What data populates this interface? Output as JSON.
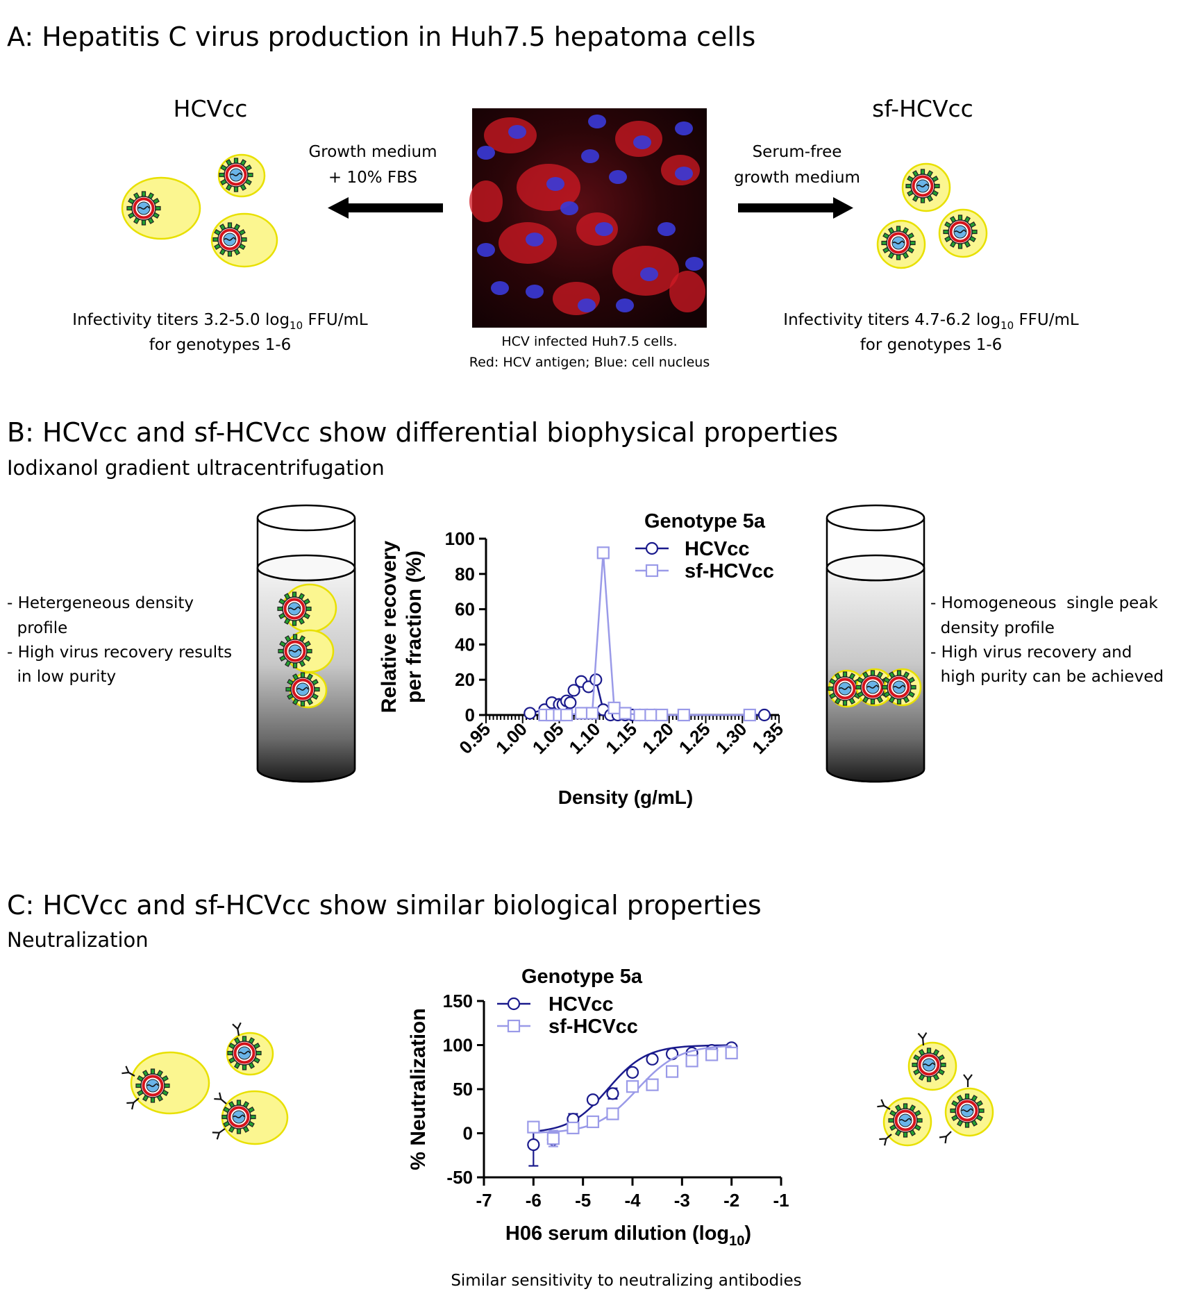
{
  "panel_a": {
    "heading": "A: Hepatitis C virus production in Huh7.5 hepatoma cells",
    "left_label": "HCVcc",
    "right_label": "sf-HCVcc",
    "left_medium_line1": "Growth medium",
    "left_medium_line2": "+ 10% FBS",
    "right_medium_line1": "Serum-free",
    "right_medium_line2": "growth medium",
    "left_titer_prefix": "Infectivity titers 3.2-5.0 log",
    "left_titer_sub": "10",
    "left_titer_suffix": " FFU/mL",
    "left_titer_line2": "for genotypes 1-6",
    "right_titer_prefix": "Infectivity titers 4.7-6.2 log",
    "right_titer_sub": "10",
    "right_titer_suffix": " FFU/mL",
    "right_titer_line2": "for genotypes 1-6",
    "caption_line1": "HCV infected Huh7.5 cells.",
    "caption_line2": "Red: HCV antigen; Blue: cell nucleus"
  },
  "panel_b": {
    "heading": "B: HCVcc and sf-HCVcc show differential biophysical properties",
    "subheading": "Iodixanol gradient ultracentrifugation",
    "left_bullets": [
      {
        "line1": "- Hetergeneous density",
        "line2": "  profile"
      },
      {
        "line1": "- High virus recovery results",
        "line2": "  in low purity"
      }
    ],
    "right_bullets": [
      {
        "line1": "- Homogeneous  single peak",
        "line2": "  density profile"
      },
      {
        "line1": "- High virus recovery and",
        "line2": "  high purity can be achieved"
      }
    ]
  },
  "panel_c": {
    "heading": "C: HCVcc and sf-HCVcc show similar biological properties",
    "subheading": "Neutralization",
    "caption": "Similar sensitivity to neutralizing antibodies"
  },
  "chart_data": [
    {
      "type": "line",
      "title": "Genotype 5a",
      "xlabel": "Density (g/mL)",
      "ylabel_line1": "Relative recovery",
      "ylabel_line2": "per fraction (%)",
      "xlim": [
        0.95,
        1.35
      ],
      "ylim": [
        0,
        100
      ],
      "x_ticks": [
        "0.95",
        "1.00",
        "1.05",
        "1.10",
        "1.15",
        "1.20",
        "1.25",
        "1.30",
        "1.35"
      ],
      "y_ticks": [
        "0",
        "20",
        "40",
        "60",
        "80",
        "100"
      ],
      "legend_position": "top-right",
      "series": [
        {
          "name": "HCVcc",
          "color": "#1a1a8c",
          "marker": "circle",
          "x": [
            1.01,
            1.03,
            1.04,
            1.05,
            1.055,
            1.06,
            1.065,
            1.07,
            1.08,
            1.09,
            1.1,
            1.11,
            1.12,
            1.13,
            1.14,
            1.15,
            1.16,
            1.17,
            1.18,
            1.33
          ],
          "y": [
            1,
            3,
            7,
            6,
            6,
            8,
            7,
            14,
            19,
            16,
            20,
            3,
            0,
            0,
            0,
            0,
            0,
            0,
            0,
            0
          ]
        },
        {
          "name": "sf-HCVcc",
          "color": "#9a9ae8",
          "marker": "square",
          "x": [
            1.03,
            1.04,
            1.05,
            1.06,
            1.08,
            1.095,
            1.11,
            1.125,
            1.14,
            1.16,
            1.175,
            1.19,
            1.22,
            1.31
          ],
          "y": [
            0,
            0,
            0,
            0,
            1,
            1,
            92,
            4,
            1,
            0,
            0,
            0,
            0,
            0
          ]
        }
      ]
    },
    {
      "type": "scatter",
      "title": "Genotype 5a",
      "xlabel_prefix": "H06 serum dilution (log",
      "xlabel_sub": "10",
      "xlabel_suffix": ")",
      "ylabel": "% Neutralization",
      "xlim": [
        -7,
        -1
      ],
      "ylim": [
        -50,
        150
      ],
      "x_ticks": [
        "-7",
        "-6",
        "-5",
        "-4",
        "-3",
        "-2",
        "-1"
      ],
      "y_ticks": [
        "-50",
        "0",
        "50",
        "100",
        "150"
      ],
      "legend_position": "top-left",
      "series": [
        {
          "name": "HCVcc",
          "color": "#1a1a8c",
          "marker": "circle",
          "x": [
            -6,
            -5.6,
            -5.2,
            -4.8,
            -4.4,
            -4,
            -3.6,
            -3.2,
            -2.8,
            -2.4,
            -2
          ],
          "y": [
            -13,
            -7,
            16,
            38,
            45,
            69,
            84,
            90,
            91,
            94,
            97
          ],
          "err": [
            24,
            4,
            6,
            0,
            6,
            0,
            0,
            0,
            0,
            0,
            0
          ],
          "fit_top": 100,
          "fit_bottom": 0,
          "fit_log_ec50": -4.5,
          "fit_hill": 0.7
        },
        {
          "name": "sf-HCVcc",
          "color": "#9a9ae8",
          "marker": "square",
          "x": [
            -6,
            -5.6,
            -5.2,
            -4.8,
            -4.4,
            -4,
            -3.6,
            -3.2,
            -2.8,
            -2.4,
            -2
          ],
          "y": [
            7,
            -6,
            6,
            13,
            22,
            53,
            55,
            70,
            82,
            89,
            91
          ],
          "err": [
            4,
            9,
            0,
            0,
            0,
            0,
            0,
            0,
            0,
            0,
            0
          ],
          "fit_top": 100,
          "fit_bottom": 0,
          "fit_log_ec50": -3.9,
          "fit_hill": 0.65
        }
      ]
    }
  ]
}
